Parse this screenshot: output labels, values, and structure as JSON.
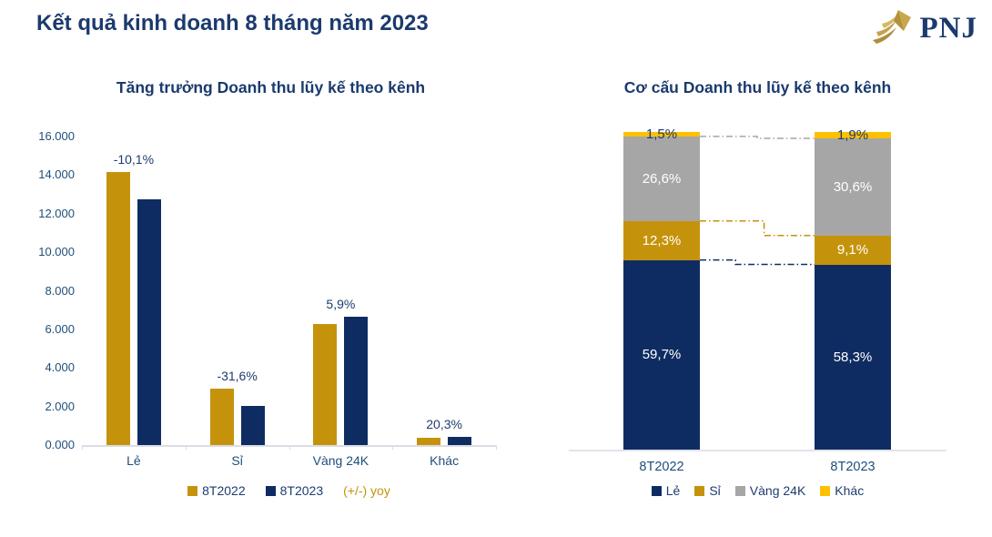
{
  "header": {
    "title": "Kết quả kinh doanh 8 tháng năm 2023",
    "logo_text": "PNJ"
  },
  "colors": {
    "navy": "#0F2C62",
    "gold": "#C5930B",
    "gray": "#A6A6A6",
    "yellow": "#FFC000",
    "heading": "#1B3A6E",
    "axis_text": "#1F4E79",
    "baseline": "#DCDCE6",
    "white": "#FFFFFF"
  },
  "left_chart": {
    "title": "Tăng trưởng Doanh thu lũy kế theo kênh",
    "legend": [
      {
        "label": "8T2022",
        "color": "#C5930B"
      },
      {
        "label": "8T2023",
        "color": "#0F2C62"
      },
      {
        "label": "(+/-) yoy",
        "color": "#C5930B"
      }
    ],
    "chart_data": {
      "type": "bar",
      "title": "Tăng trưởng Doanh thu lũy kế theo kênh",
      "categories": [
        "Lẻ",
        "Sỉ",
        "Vàng 24K",
        "Khác"
      ],
      "series": [
        {
          "name": "8T2022",
          "color": "#C5930B",
          "values": [
            14150,
            2950,
            6300,
            370
          ]
        },
        {
          "name": "8T2023",
          "color": "#0F2C62",
          "values": [
            12730,
            2020,
            6670,
            445
          ]
        }
      ],
      "yoy_labels": [
        "-10,1%",
        "-31,6%",
        "5,9%",
        "20,3%"
      ],
      "xlabel": "",
      "ylabel": "",
      "ylim": [
        0,
        16000
      ],
      "y_tick_step": 2000,
      "y_tick_labels": [
        "0.000",
        "2.000",
        "4.000",
        "6.000",
        "8.000",
        "10.000",
        "12.000",
        "14.000",
        "16.000"
      ],
      "grid": false,
      "legend_position": "bottom"
    }
  },
  "right_chart": {
    "title": "Cơ cấu Doanh thu lũy kế theo kênh",
    "legend": [
      {
        "label": "Lẻ",
        "color": "#0F2C62"
      },
      {
        "label": "Sỉ",
        "color": "#C5930B"
      },
      {
        "label": "Vàng 24K",
        "color": "#A6A6A6"
      },
      {
        "label": "Khác",
        "color": "#FFC000"
      }
    ],
    "chart_data": {
      "type": "bar",
      "stacked": true,
      "stacked_percent": true,
      "title": "Cơ cấu Doanh thu lũy kế theo kênh",
      "categories": [
        "8T2022",
        "8T2023"
      ],
      "series": [
        {
          "name": "Lẻ",
          "color": "#0F2C62",
          "values": [
            59.7,
            58.3
          ],
          "labels": [
            "59,7%",
            "58,3%"
          ],
          "label_color": "#FFFFFF"
        },
        {
          "name": "Sỉ",
          "color": "#C5930B",
          "values": [
            12.3,
            9.1
          ],
          "labels": [
            "12,3%",
            "9,1%"
          ],
          "label_color": "#FFFFFF"
        },
        {
          "name": "Vàng 24K",
          "color": "#A6A6A6",
          "values": [
            26.6,
            30.6
          ],
          "labels": [
            "26,6%",
            "30,6%"
          ],
          "label_color": "#FFFFFF"
        },
        {
          "name": "Khác",
          "color": "#FFC000",
          "values": [
            1.5,
            1.9
          ],
          "labels": [
            "1,5%",
            "1,9%"
          ],
          "label_color": "#1B3A6E"
        }
      ],
      "ylim": [
        0,
        100
      ],
      "grid": false,
      "legend_position": "bottom",
      "connector_lines": true
    }
  }
}
